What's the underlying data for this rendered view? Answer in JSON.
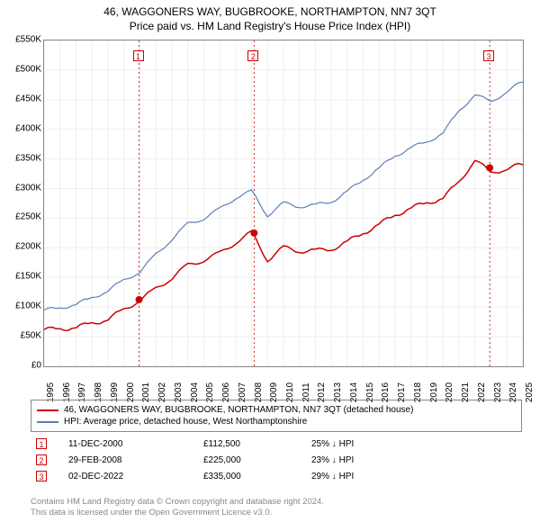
{
  "title": "46, WAGGONERS WAY, BUGBROOKE, NORTHAMPTON, NN7 3QT",
  "subtitle": "Price paid vs. HM Land Registry's House Price Index (HPI)",
  "chart": {
    "type": "line",
    "background_color": "#ffffff",
    "plot_border_color": "#888888",
    "grid_color": "#efefef",
    "ylim": [
      0,
      550000
    ],
    "ytick_step": 50000,
    "ytick_labels": [
      "£0",
      "£50K",
      "£100K",
      "£150K",
      "£200K",
      "£250K",
      "£300K",
      "£350K",
      "£400K",
      "£450K",
      "£500K",
      "£550K"
    ],
    "x_years": [
      1995,
      1996,
      1997,
      1998,
      1999,
      2000,
      2001,
      2002,
      2003,
      2004,
      2005,
      2006,
      2007,
      2008,
      2009,
      2010,
      2011,
      2012,
      2013,
      2014,
      2015,
      2016,
      2017,
      2018,
      2019,
      2020,
      2021,
      2022,
      2023,
      2024,
      2025
    ],
    "series": [
      {
        "id": "property",
        "color": "#cc0000",
        "line_width": 1.5,
        "values": [
          62000,
          63000,
          66000,
          72000,
          80000,
          95000,
          112500,
          130000,
          150000,
          170000,
          180000,
          190000,
          210000,
          225000,
          180000,
          200000,
          195000,
          195000,
          198000,
          210000,
          225000,
          240000,
          255000,
          268000,
          275000,
          285000,
          310000,
          350000,
          325000,
          335000,
          340000
        ]
      },
      {
        "id": "hpi",
        "color": "#5b7fb4",
        "line_width": 1.2,
        "values": [
          95000,
          98000,
          105000,
          115000,
          128000,
          145000,
          160000,
          188000,
          215000,
          240000,
          250000,
          265000,
          285000,
          295000,
          255000,
          275000,
          270000,
          272000,
          278000,
          295000,
          315000,
          335000,
          355000,
          370000,
          378000,
          395000,
          430000,
          460000,
          445000,
          465000,
          480000
        ]
      }
    ],
    "transaction_markers": [
      {
        "idx": "1",
        "year": 2000.95,
        "value": 112500
      },
      {
        "idx": "2",
        "year": 2008.16,
        "value": 225000
      },
      {
        "idx": "3",
        "year": 2022.92,
        "value": 335000
      }
    ],
    "vline_color": "#cc0000",
    "vline_dash": "2,3",
    "vline_width": 0.8,
    "marker_dot_color": "#cc0000",
    "marker_dot_radius": 4,
    "label_fontsize": 10
  },
  "legend": {
    "items": [
      {
        "color": "#cc0000",
        "label": "46, WAGGONERS WAY, BUGBROOKE, NORTHAMPTON, NN7 3QT (detached house)"
      },
      {
        "color": "#5b7fb4",
        "label": "HPI: Average price, detached house, West Northamptonshire"
      }
    ]
  },
  "transactions": [
    {
      "idx": "1",
      "date": "11-DEC-2000",
      "price": "£112,500",
      "diff": "25% ↓ HPI"
    },
    {
      "idx": "2",
      "date": "29-FEB-2008",
      "price": "£225,000",
      "diff": "23% ↓ HPI"
    },
    {
      "idx": "3",
      "date": "02-DEC-2022",
      "price": "£335,000",
      "diff": "29% ↓ HPI"
    }
  ],
  "footer": {
    "line1": "Contains HM Land Registry data © Crown copyright and database right 2024.",
    "line2": "This data is licensed under the Open Government Licence v3.0."
  }
}
